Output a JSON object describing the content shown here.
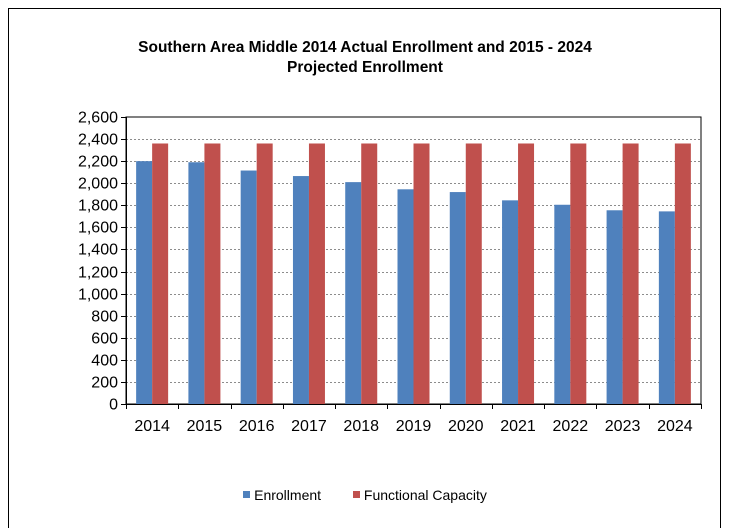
{
  "chart_data": {
    "type": "bar",
    "title_line1": "Southern Area Middle 2014 Actual Enrollment and 2015 - 2024",
    "title_line2": "Projected Enrollment",
    "xlabel": "",
    "ylabel": "",
    "categories": [
      "2014",
      "2015",
      "2016",
      "2017",
      "2018",
      "2019",
      "2020",
      "2021",
      "2022",
      "2023",
      "2024"
    ],
    "ylim": [
      0,
      2600
    ],
    "yticks": [
      0,
      200,
      400,
      600,
      800,
      1000,
      1200,
      1400,
      1600,
      1800,
      2000,
      2200,
      2400,
      2600
    ],
    "ytick_labels": [
      "0",
      "200",
      "400",
      "600",
      "800",
      "1,000",
      "1,200",
      "1,400",
      "1,600",
      "1,800",
      "2,000",
      "2,200",
      "2,400",
      "2,600"
    ],
    "grid": true,
    "legend_position": "bottom",
    "series": [
      {
        "name": "Enrollment",
        "color": "#4F81BD",
        "values": [
          2200,
          2190,
          2115,
          2065,
          2010,
          1945,
          1920,
          1845,
          1805,
          1755,
          1745
        ]
      },
      {
        "name": "Functional Capacity",
        "color": "#C0504D",
        "values": [
          2360,
          2360,
          2360,
          2360,
          2360,
          2360,
          2360,
          2360,
          2360,
          2360,
          2360
        ]
      }
    ]
  }
}
